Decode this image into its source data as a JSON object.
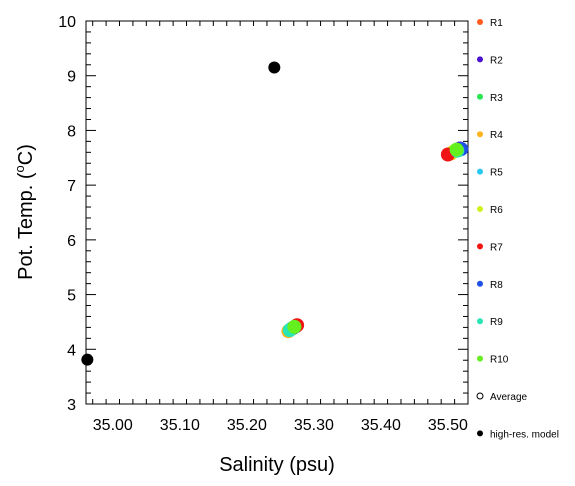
{
  "chart_data": {
    "type": "scatter",
    "title": "",
    "xlabel": "Salinity (psu)",
    "ylabel_prefix": "Pot. Temp. (",
    "ylabel_sup": "o",
    "ylabel_suffix": "C)",
    "xlim": [
      34.96,
      35.53
    ],
    "ylim": [
      3,
      10
    ],
    "xticks": [
      35.0,
      35.1,
      35.2,
      35.3,
      35.4,
      35.5
    ],
    "xtick_labels": [
      "35.00",
      "35.10",
      "35.20",
      "35.30",
      "35.40",
      "35.50"
    ],
    "yticks": [
      3,
      4,
      5,
      6,
      7,
      8,
      9,
      10
    ],
    "ytick_labels": [
      "3",
      "4",
      "5",
      "6",
      "7",
      "8",
      "9",
      "10"
    ],
    "grid": false,
    "legend_position": "right",
    "series": [
      {
        "name": "R1",
        "color": "#ff5a1e",
        "marker": "filled-circle",
        "points": [
          [
            35.274,
            4.43
          ],
          [
            35.512,
            7.63
          ]
        ]
      },
      {
        "name": "R2",
        "color": "#4b0fd2",
        "marker": "filled-circle",
        "points": [
          [
            35.273,
            4.42
          ],
          [
            35.518,
            7.67
          ]
        ]
      },
      {
        "name": "R3",
        "color": "#28e650",
        "marker": "filled-circle",
        "points": [
          [
            35.27,
            4.4
          ],
          [
            35.516,
            7.64
          ]
        ]
      },
      {
        "name": "R4",
        "color": "#ffb41e",
        "marker": "filled-circle",
        "points": [
          [
            35.262,
            4.33
          ],
          [
            35.505,
            7.58
          ]
        ]
      },
      {
        "name": "R5",
        "color": "#28c8f0",
        "marker": "filled-circle",
        "points": [
          [
            35.266,
            4.37
          ],
          [
            35.51,
            7.62
          ]
        ]
      },
      {
        "name": "R6",
        "color": "#d2f01e",
        "marker": "filled-circle",
        "points": [
          [
            35.268,
            4.38
          ],
          [
            35.508,
            7.61
          ]
        ]
      },
      {
        "name": "R7",
        "color": "#f01414",
        "marker": "filled-circle",
        "points": [
          [
            35.275,
            4.44
          ],
          [
            35.5,
            7.56
          ]
        ]
      },
      {
        "name": "R8",
        "color": "#1e50e6",
        "marker": "filled-circle",
        "points": [
          [
            35.269,
            4.39
          ],
          [
            35.52,
            7.66
          ]
        ]
      },
      {
        "name": "R9",
        "color": "#28e6b4",
        "marker": "filled-circle",
        "points": [
          [
            35.264,
            4.35
          ],
          [
            35.514,
            7.63
          ]
        ]
      },
      {
        "name": "R10",
        "color": "#64f01e",
        "marker": "filled-circle",
        "points": [
          [
            35.271,
            4.41
          ],
          [
            35.513,
            7.65
          ]
        ]
      },
      {
        "name": "Average",
        "color": "#000000",
        "marker": "open-circle",
        "points": []
      },
      {
        "name": "high-res. model",
        "color": "#000000",
        "marker": "filled-circle",
        "points": [
          [
            34.962,
            3.81
          ],
          [
            35.241,
            9.15
          ]
        ]
      }
    ]
  }
}
